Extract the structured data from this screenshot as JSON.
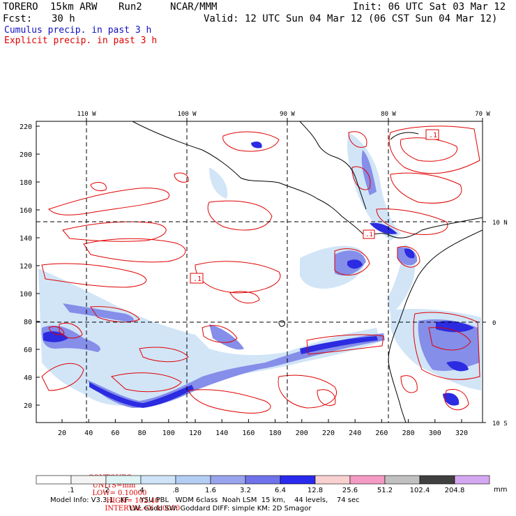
{
  "header": {
    "model": "TORERO",
    "resolution": "15km ARW",
    "run": "Run2",
    "org": "NCAR/MMM",
    "init": "Init: 06 UTC Sat 03 Mar 12",
    "fcst_label": "Fcst:",
    "fcst_value": "30 h",
    "valid": "Valid: 12 UTC Sun 04 Mar 12 (06 CST Sun 04 Mar 12)",
    "legend_cumulus": "Cumulus precip. in past 3 h",
    "legend_explicit": "Explicit precip. in past 3 h"
  },
  "map": {
    "top_lon_labels": [
      "110 W",
      "100 W",
      "90 W",
      "80 W",
      "70 W"
    ],
    "right_lat_labels": [
      "10 N",
      "0",
      "10 S"
    ],
    "left_y_ticks": [
      "220",
      "200",
      "180",
      "160",
      "140",
      "120",
      "100",
      "80",
      "60",
      "40",
      "20"
    ],
    "bottom_x_ticks": [
      "20",
      "40",
      "60",
      "80",
      "100",
      "120",
      "140",
      "160",
      "180",
      "200",
      "220",
      "240",
      "260",
      "280",
      "300",
      "320"
    ],
    "box_labels": [
      ".1",
      ".1",
      ".1"
    ],
    "colors": {
      "explicit_contour": "#e00000",
      "cumulus_light": "#cfe4f7",
      "cumulus_mid": "#7f88e8",
      "cumulus_dark": "#2020e0",
      "coastline": "#000000"
    }
  },
  "contours_info": {
    "label": "CONTOURS:",
    "units": "UNITS=mm",
    "low": "LOW= 0.10000",
    "high": "HIGH= 102.40",
    "interval": "INTERVAL=X 4.0000"
  },
  "colorbar": {
    "labels": [
      ".1",
      ".2",
      ".4",
      ".8",
      "1.6",
      "3.2",
      "6.4",
      "12.8",
      "25.6",
      "51.2",
      "102.4",
      "204.8"
    ],
    "unit": "mm",
    "colors": [
      "#ffffff",
      "#f4f4f4",
      "#dff5f5",
      "#cfe4f7",
      "#b4cdf2",
      "#9aa3ee",
      "#6f72ea",
      "#2a2aee",
      "#f9d0d0",
      "#f59ac2",
      "#c0c0c0",
      "#404040",
      "#d4a8f0"
    ]
  },
  "footer": {
    "line1": "Model Info: V3.3.1   KF     YSU PBL   WDM 6class  Noah LSM  15 km,    44 levels,    74 sec",
    "line2": "LW: Godd SW: Goddard DIFF: simple KM: 2D Smagor"
  }
}
